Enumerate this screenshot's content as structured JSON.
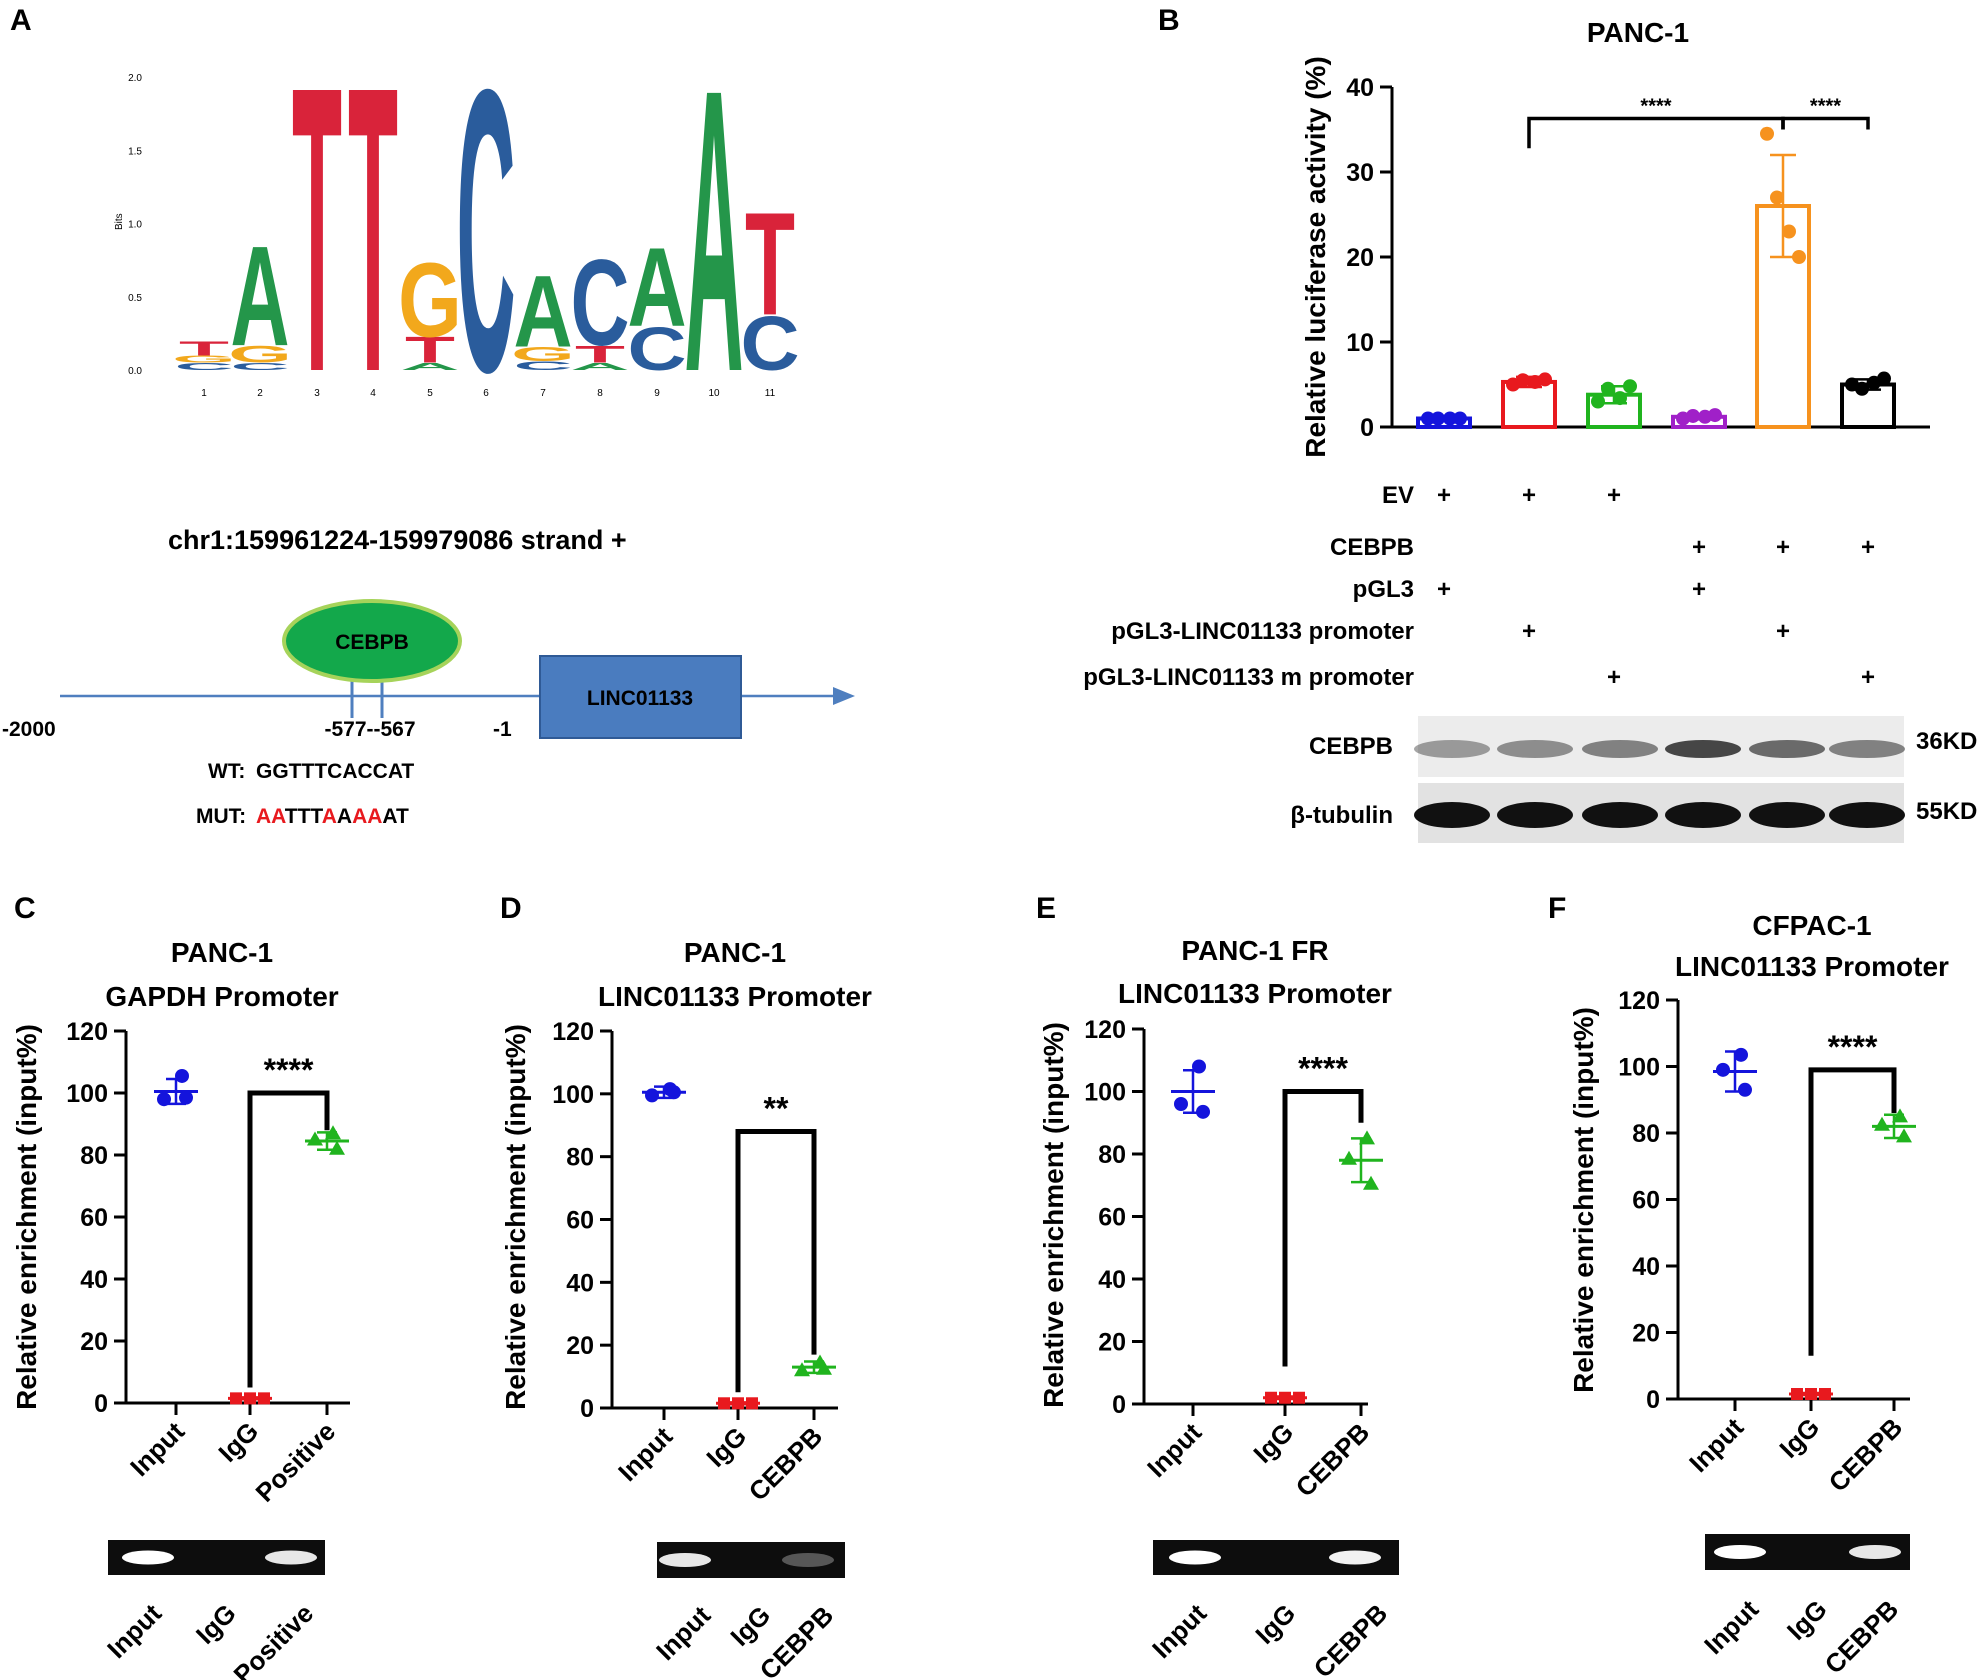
{
  "panels": {
    "A": "A",
    "B": "B",
    "C": "C",
    "D": "D",
    "E": "E",
    "F": "F"
  },
  "colors": {
    "blue": "#1414dc",
    "red": "#e8191e",
    "green": "#20b41e",
    "purple": "#a020c8",
    "orange": "#f6921e",
    "black": "#000000",
    "logo_A": "#24964a",
    "logo_C": "#2a5c9c",
    "logo_G": "#f2a81c",
    "logo_T": "#d9233a",
    "promoter_line": "#4f7fbf",
    "box_fill": "#4a7cbf",
    "ellipse_fill": "#13a84b",
    "ellipse_stroke": "#a6d35a"
  },
  "panel_a": {
    "logo": {
      "y_axis_label": "Bits",
      "y_ticks": [
        "0.0",
        "0.5",
        "1.0",
        "1.5",
        "2.0"
      ],
      "positions": [
        "1",
        "2",
        "3",
        "4",
        "5",
        "6",
        "7",
        "8",
        "9",
        "10",
        "11"
      ],
      "letters": [
        {
          "pos": 1,
          "stack": [
            "C",
            "G",
            "T"
          ]
        },
        {
          "pos": 2,
          "stack": [
            "C",
            "G",
            "A"
          ]
        },
        {
          "pos": 3,
          "stack": [
            "T"
          ]
        },
        {
          "pos": 4,
          "stack": [
            "T"
          ]
        },
        {
          "pos": 5,
          "stack": [
            "A",
            "T",
            "G"
          ]
        },
        {
          "pos": 6,
          "stack": [
            "C"
          ]
        },
        {
          "pos": 7,
          "stack": [
            "C",
            "G",
            "A"
          ]
        },
        {
          "pos": 8,
          "stack": [
            "A",
            "T",
            "C"
          ]
        },
        {
          "pos": 9,
          "stack": [
            "C",
            "A"
          ]
        },
        {
          "pos": 10,
          "stack": [
            "A"
          ]
        },
        {
          "pos": 11,
          "stack": [
            "C",
            "T"
          ]
        }
      ]
    },
    "locus": "chr1:159961224-159979086  strand +",
    "tf_label": "CEBPB",
    "gene_label": "LINC01133",
    "pos_left": "-2000",
    "pos_site": "-577--567",
    "pos_tss": "-1",
    "wt_prefix": "WT:",
    "wt_seq": "GGTTTCACCAT",
    "mut_prefix": "MUT:",
    "mut_seq_parts": [
      {
        "t": "AA",
        "mut": true
      },
      {
        "t": "TTT",
        "mut": false
      },
      {
        "t": "A",
        "mut": true
      },
      {
        "t": "A",
        "mut": false
      },
      {
        "t": "AA",
        "mut": true
      },
      {
        "t": "AT",
        "mut": false
      }
    ]
  },
  "panel_b": {
    "title": "PANC-1",
    "ylabel": "Relative luciferase activity (%)",
    "rows": [
      {
        "label": "EV",
        "marks": [
          "+",
          "+",
          "+",
          "",
          "",
          ""
        ]
      },
      {
        "label": "CEBPB",
        "marks": [
          "",
          "",
          "",
          "+",
          "+",
          "+"
        ]
      },
      {
        "label": "pGL3",
        "marks": [
          "+",
          "",
          "",
          "+",
          "",
          ""
        ]
      },
      {
        "label": "pGL3-LINC01133  promoter",
        "marks": [
          "",
          "+",
          "",
          "",
          "+",
          ""
        ]
      },
      {
        "label": "pGL3-LINC01133  m promoter",
        "marks": [
          "",
          "",
          "+",
          "",
          "",
          "+"
        ]
      }
    ],
    "blot": [
      {
        "label": "CEBPB",
        "kd": "36KD"
      },
      {
        "label": "β-tubulin",
        "kd": "55KD"
      }
    ]
  },
  "chart_data": [
    {
      "panel": "B",
      "type": "bar",
      "title": "PANC-1",
      "ylabel": "Relative luciferase activity (%)",
      "ylim": [
        0,
        40
      ],
      "yticks": [
        0,
        10,
        20,
        30,
        40
      ],
      "groups": [
        {
          "mean": 1.0,
          "sd": 0.2,
          "points": [
            1.0,
            1.0,
            1.0,
            1.0
          ],
          "color": "#1414dc"
        },
        {
          "mean": 5.3,
          "sd": 0.6,
          "points": [
            5.0,
            5.5,
            5.3,
            5.6
          ],
          "color": "#e8191e"
        },
        {
          "mean": 3.8,
          "sd": 1.0,
          "points": [
            3.0,
            4.5,
            3.4,
            4.8
          ],
          "color": "#20b41e"
        },
        {
          "mean": 1.2,
          "sd": 0.3,
          "points": [
            1.0,
            1.3,
            1.2,
            1.4
          ],
          "color": "#a020c8"
        },
        {
          "mean": 26.0,
          "sd": 6.0,
          "points": [
            34.5,
            27.0,
            23.0,
            20.0
          ],
          "color": "#f6921e"
        },
        {
          "mean": 5.0,
          "sd": 0.6,
          "points": [
            5.0,
            4.5,
            5.2,
            5.7
          ],
          "color": "#000000"
        }
      ],
      "significance": [
        {
          "from": 1,
          "to": 4,
          "label": "****"
        },
        {
          "from": 4,
          "to": 5,
          "label": "****"
        }
      ]
    },
    {
      "panel": "C",
      "type": "scatter",
      "title": [
        "PANC-1",
        "GAPDH Promoter"
      ],
      "ylabel": "Relative enrichment (input%)",
      "ylim": [
        0,
        120
      ],
      "yticks": [
        0,
        20,
        40,
        60,
        80,
        100,
        120
      ],
      "categories": [
        "Input",
        "IgG",
        "Positive"
      ],
      "groups": [
        {
          "marker": "circle",
          "color": "#1414dc",
          "mean": 100.5,
          "sd": 4.0,
          "points": [
            105.5,
            98.0,
            98.5
          ]
        },
        {
          "marker": "square",
          "color": "#e8191e",
          "mean": 1.5,
          "sd": 0.3,
          "points": [
            1.5,
            1.5,
            1.5
          ]
        },
        {
          "marker": "triangle",
          "color": "#20b41e",
          "mean": 84.5,
          "sd": 2.8,
          "points": [
            87.0,
            85.0,
            82.0
          ]
        }
      ],
      "significance": {
        "label": "****",
        "top": 100,
        "left_base": 5,
        "right_base": 88
      },
      "gel_labels": [
        "Input",
        "IgG",
        "Positive"
      ]
    },
    {
      "panel": "D",
      "type": "scatter",
      "title": [
        "PANC-1",
        "LINC01133 Promoter"
      ],
      "ylabel": "Relative enrichment (input%)",
      "ylim": [
        0,
        120
      ],
      "yticks": [
        0,
        20,
        40,
        60,
        80,
        100,
        120
      ],
      "categories": [
        "Input",
        "IgG",
        "CEBPB"
      ],
      "groups": [
        {
          "marker": "circle",
          "color": "#1414dc",
          "mean": 100.5,
          "sd": 1.8,
          "points": [
            101.5,
            99.5,
            100.5
          ]
        },
        {
          "marker": "square",
          "color": "#e8191e",
          "mean": 1.5,
          "sd": 0.3,
          "points": [
            1.5,
            1.5,
            1.5
          ]
        },
        {
          "marker": "triangle",
          "color": "#20b41e",
          "mean": 13.0,
          "sd": 1.8,
          "points": [
            14.5,
            12.0,
            12.5
          ]
        }
      ],
      "significance": {
        "label": "**",
        "top": 88,
        "left_base": 5,
        "right_base": 17
      },
      "gel_labels": [
        "Input",
        "IgG",
        "CEBPB"
      ]
    },
    {
      "panel": "E",
      "type": "scatter",
      "title": [
        "PANC-1 FR",
        "LINC01133 Promoter"
      ],
      "ylabel": "Relative enrichment (input%)",
      "ylim": [
        0,
        120
      ],
      "yticks": [
        0,
        20,
        40,
        60,
        80,
        100,
        120
      ],
      "categories": [
        "Input",
        "IgG",
        "CEBPB"
      ],
      "groups": [
        {
          "marker": "circle",
          "color": "#1414dc",
          "mean": 100.0,
          "sd": 6.8,
          "points": [
            108.0,
            96.0,
            93.5
          ]
        },
        {
          "marker": "square",
          "color": "#e8191e",
          "mean": 2.0,
          "sd": 0.4,
          "points": [
            2.0,
            2.0,
            2.0
          ]
        },
        {
          "marker": "triangle",
          "color": "#20b41e",
          "mean": 78.0,
          "sd": 7.0,
          "points": [
            85.0,
            78.5,
            70.5
          ]
        }
      ],
      "significance": {
        "label": "****",
        "top": 100,
        "left_base": 12,
        "right_base": 90
      },
      "gel_labels": [
        "Input",
        "IgG",
        "CEBPB"
      ]
    },
    {
      "panel": "F",
      "type": "scatter",
      "title": [
        "CFPAC-1",
        "LINC01133 Promoter"
      ],
      "ylabel": "Relative enrichment (input%)",
      "ylim": [
        0,
        120
      ],
      "yticks": [
        0,
        20,
        40,
        60,
        80,
        100,
        120
      ],
      "categories": [
        "Input",
        "IgG",
        "CEBPB"
      ],
      "groups": [
        {
          "marker": "circle",
          "color": "#1414dc",
          "mean": 98.5,
          "sd": 6.0,
          "points": [
            103.5,
            99.0,
            93.0
          ]
        },
        {
          "marker": "square",
          "color": "#e8191e",
          "mean": 1.5,
          "sd": 0.3,
          "points": [
            1.5,
            1.5,
            1.5
          ]
        },
        {
          "marker": "triangle",
          "color": "#20b41e",
          "mean": 82.0,
          "sd": 3.5,
          "points": [
            85.0,
            82.5,
            79.0
          ]
        }
      ],
      "significance": {
        "label": "****",
        "top": 99,
        "left_base": 13,
        "right_base": 86
      },
      "gel_labels": [
        "Input",
        "IgG",
        "CEBPB"
      ]
    }
  ]
}
